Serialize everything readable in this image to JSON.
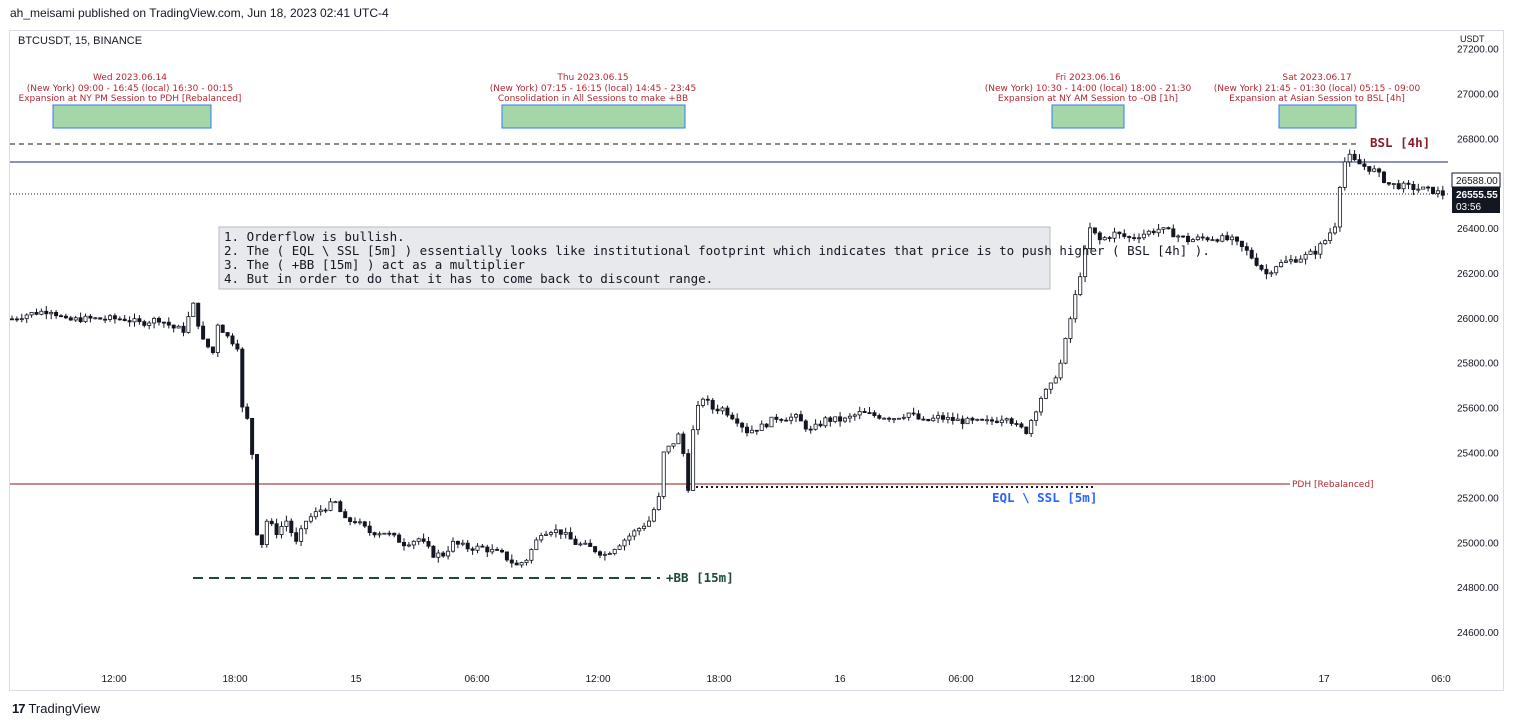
{
  "header": {
    "publisher_line": "ah_meisami published on TradingView.com, Jun 18, 2023 02:41 UTC-4"
  },
  "symbol": {
    "line": "BTCUSDT, 15, BINANCE",
    "currency": "USDT"
  },
  "footer": {
    "brand": "TradingView",
    "logo_mark": "17"
  },
  "price_tags": {
    "last_close": "26588.00",
    "current": "26555.55",
    "countdown": "03:56"
  },
  "colors": {
    "session_text": "#b22833",
    "session_box": "#a5d6a7",
    "session_border": "#3179f5",
    "bsl": "#8b1a2a",
    "eql": "#2962ff",
    "bb": "#1a4a38",
    "pdh": "#8b1a1a",
    "blue_line": "#1a237e"
  },
  "sessions": [
    {
      "day": "Wed 2023.06.14",
      "time": "(New York) 09:00 - 16:45 (local) 16:30 - 00:15",
      "desc": "Expansion at NY PM Session to PDH [Rebalanced]"
    },
    {
      "day": "Thu 2023.06.15",
      "time": "(New York) 07:15 - 16:15 (local) 14:45 - 23:45",
      "desc": "Consolidation in All Sessions to make +BB"
    },
    {
      "day": "Fri 2023.06.16",
      "time": "(New York) 10:30 - 14:00 (local) 18:00 - 21:30",
      "desc": "Expansion at NY AM Session to -OB [1h]"
    },
    {
      "day": "Sat 2023.06.17",
      "time": "(New York) 21:45 - 01:30 (local) 05:15 - 09:00",
      "desc": "Expansion at Asian Session to BSL [4h]"
    }
  ],
  "notes": [
    "1. Orderflow is bullish.",
    "2. The ( EQL \\ SSL [5m] ) essentially looks like institutional footprint which indicates that price is to push higher ( BSL [4h] ).",
    "3. The ( +BB [15m] ) act as a multiplier",
    "4. But in order to do that it has to come back to discount range."
  ],
  "annotations": {
    "bsl": "BSL [4h]",
    "eql": "EQL \\ SSL [5m]",
    "bb": "+BB [15m]",
    "pdh": "PDH [Rebalanced]"
  },
  "chart_data": {
    "type": "candlestick",
    "symbol": "BTCUSDT",
    "interval": "15",
    "exchange": "BINANCE",
    "ylim": [
      24480,
      27220
    ],
    "y_ticks": [
      "27200.00",
      "27000.00",
      "26800.00",
      "26600.00",
      "26400.00",
      "26200.00",
      "26000.00",
      "25800.00",
      "25600.00",
      "25400.00",
      "25200.00",
      "25000.00",
      "24800.00",
      "24600.00"
    ],
    "x_ticks": [
      "12:00",
      "18:00",
      "15",
      "06:00",
      "12:00",
      "18:00",
      "16",
      "06:00",
      "12:00",
      "18:00",
      "17",
      "06:0"
    ],
    "levels": {
      "bsl_4h": 26840,
      "blue_line": 26720,
      "last_close": 26588,
      "current": 26555.55,
      "pdh_rebalanced": 25245,
      "eql_ssl_5m": 25235,
      "bb_15m": 24820
    },
    "price_path": [
      [
        0,
        26000
      ],
      [
        3,
        26020
      ],
      [
        8,
        26040
      ],
      [
        11,
        25990
      ],
      [
        14,
        26000
      ],
      [
        17,
        26000
      ],
      [
        20,
        26000
      ],
      [
        23,
        26000
      ],
      [
        26,
        25980
      ],
      [
        30,
        26000
      ],
      [
        33,
        25960
      ],
      [
        35,
        25950
      ],
      [
        37,
        26060
      ],
      [
        39,
        25900
      ],
      [
        41,
        25850
      ],
      [
        42,
        25980
      ],
      [
        44,
        25920
      ],
      [
        45,
        25900
      ],
      [
        46,
        25880
      ],
      [
        47,
        25600
      ],
      [
        48,
        25550
      ],
      [
        49,
        25400
      ],
      [
        50,
        25050
      ],
      [
        51,
        25000
      ],
      [
        52,
        25100
      ],
      [
        54,
        25050
      ],
      [
        56,
        25100
      ],
      [
        58,
        25000
      ],
      [
        60,
        25100
      ],
      [
        63,
        25150
      ],
      [
        66,
        25180
      ],
      [
        68,
        25100
      ],
      [
        70,
        25100
      ],
      [
        73,
        25050
      ],
      [
        76,
        25050
      ],
      [
        80,
        25000
      ],
      [
        83,
        25020
      ],
      [
        86,
        24950
      ],
      [
        88,
        24950
      ],
      [
        90,
        25000
      ],
      [
        93,
        24980
      ],
      [
        96,
        24980
      ],
      [
        100,
        24950
      ],
      [
        103,
        24900
      ],
      [
        105,
        24930
      ],
      [
        108,
        25050
      ],
      [
        110,
        25060
      ],
      [
        112,
        25050
      ],
      [
        115,
        25000
      ],
      [
        118,
        24980
      ],
      [
        121,
        24950
      ],
      [
        124,
        25000
      ],
      [
        127,
        25050
      ],
      [
        130,
        25100
      ],
      [
        132,
        25200
      ],
      [
        133,
        25400
      ],
      [
        135,
        25450
      ],
      [
        136,
        25480
      ],
      [
        137,
        25400
      ],
      [
        138,
        25250
      ],
      [
        139,
        25500
      ],
      [
        140,
        25600
      ],
      [
        141,
        25650
      ],
      [
        143,
        25600
      ],
      [
        145,
        25600
      ],
      [
        148,
        25550
      ],
      [
        150,
        25500
      ],
      [
        153,
        25520
      ],
      [
        156,
        25560
      ],
      [
        160,
        25560
      ],
      [
        163,
        25500
      ],
      [
        166,
        25550
      ],
      [
        170,
        25550
      ],
      [
        173,
        25580
      ],
      [
        176,
        25570
      ],
      [
        180,
        25560
      ],
      [
        183,
        25580
      ],
      [
        186,
        25540
      ],
      [
        189,
        25560
      ],
      [
        192,
        25550
      ],
      [
        196,
        25540
      ],
      [
        199,
        25540
      ],
      [
        201,
        25550
      ],
      [
        203,
        25570
      ],
      [
        205,
        25520
      ],
      [
        207,
        25500
      ],
      [
        208,
        25550
      ],
      [
        210,
        25650
      ],
      [
        212,
        25700
      ],
      [
        214,
        25800
      ],
      [
        216,
        26000
      ],
      [
        218,
        26200
      ],
      [
        220,
        26400
      ],
      [
        222,
        26350
      ],
      [
        225,
        26380
      ],
      [
        228,
        26360
      ],
      [
        231,
        26380
      ],
      [
        234,
        26400
      ],
      [
        237,
        26380
      ],
      [
        240,
        26350
      ],
      [
        243,
        26360
      ],
      [
        246,
        26360
      ],
      [
        249,
        26350
      ],
      [
        252,
        26300
      ],
      [
        254,
        26250
      ],
      [
        256,
        26200
      ],
      [
        258,
        26240
      ],
      [
        261,
        26260
      ],
      [
        264,
        26280
      ],
      [
        266,
        26300
      ],
      [
        268,
        26350
      ],
      [
        270,
        26420
      ],
      [
        271,
        26600
      ],
      [
        272,
        26700
      ],
      [
        273,
        26720
      ],
      [
        274,
        26700
      ],
      [
        276,
        26680
      ],
      [
        278,
        26660
      ],
      [
        281,
        26600
      ],
      [
        284,
        26590
      ],
      [
        287,
        26580
      ],
      [
        290,
        26570
      ],
      [
        292,
        26555
      ]
    ],
    "extremes": {
      "low_wed": 24820,
      "low_thu": 24820,
      "high_sat": 26840,
      "wed_high": 26100
    }
  }
}
